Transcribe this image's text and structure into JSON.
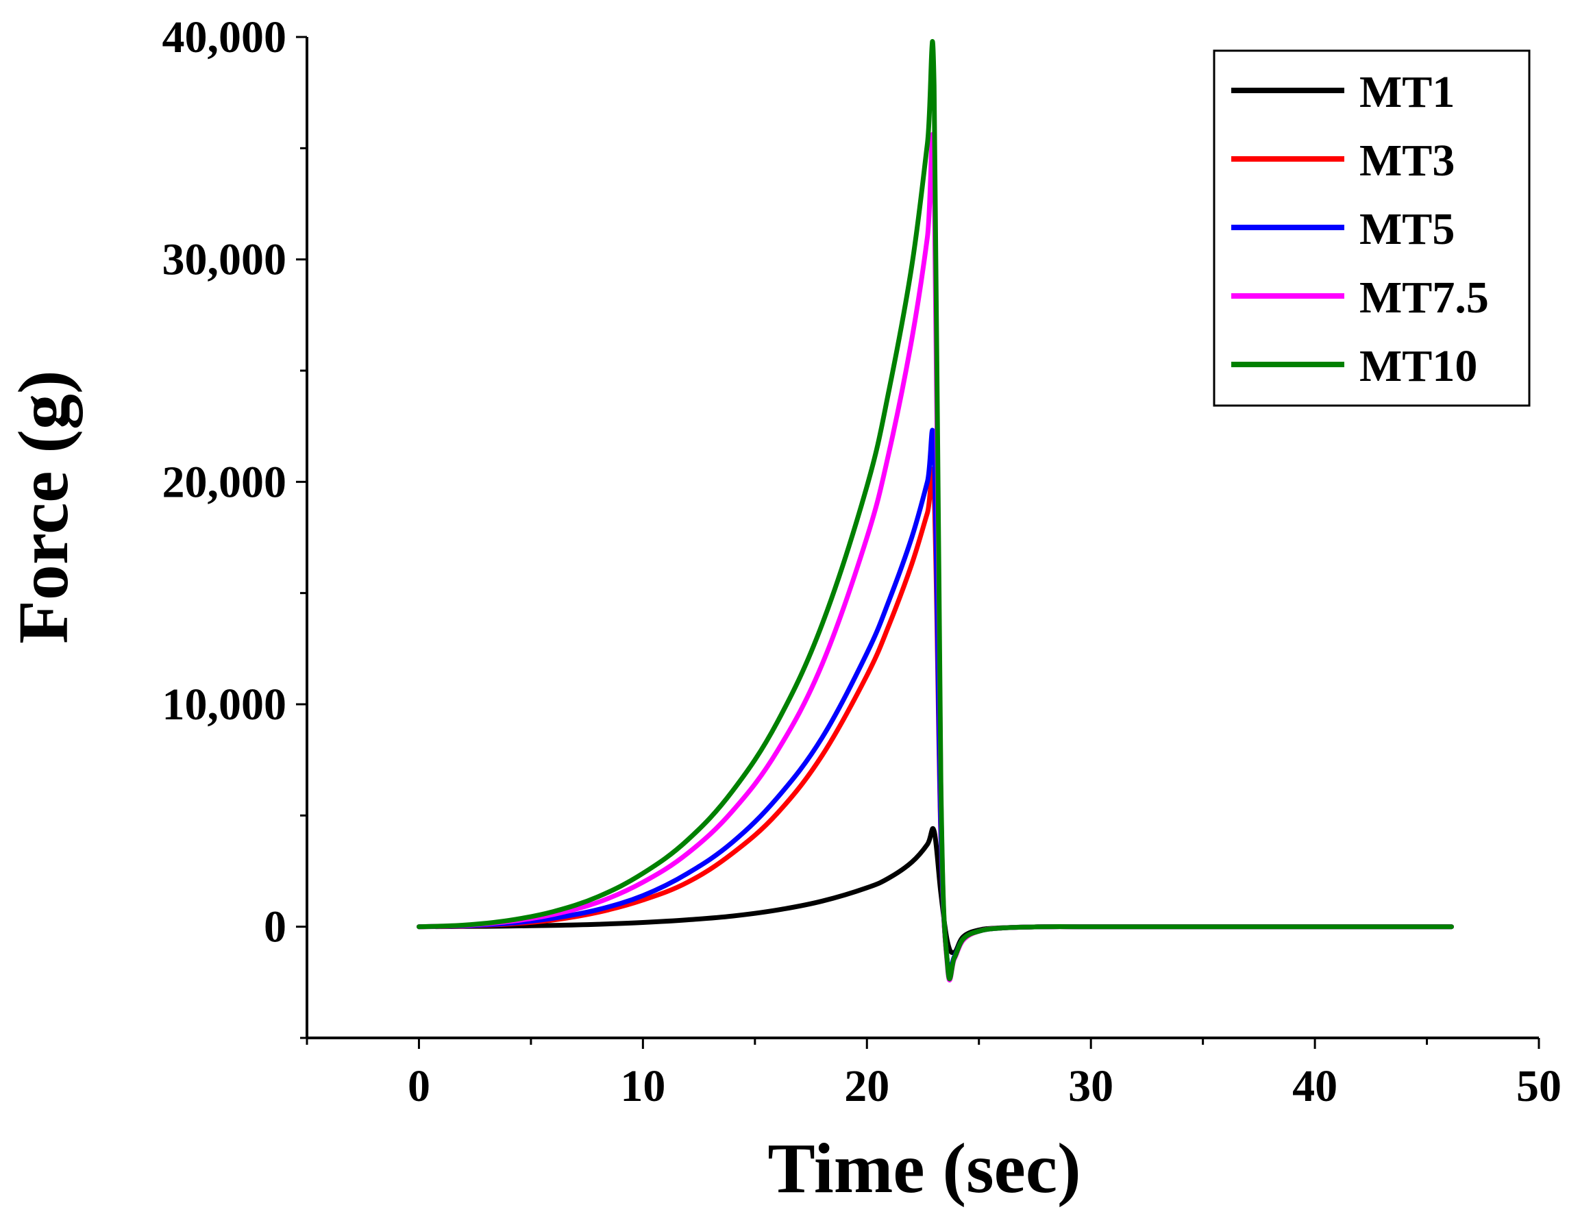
{
  "chart_data": {
    "type": "line",
    "title": "",
    "xlabel": "Time (sec)",
    "ylabel": "Force (g)",
    "xlim": [
      -5,
      50
    ],
    "ylim": [
      -5000,
      40000
    ],
    "x_ticks": [
      0,
      10,
      20,
      30,
      40,
      50
    ],
    "x_tick_labels": [
      "0",
      "10",
      "20",
      "30",
      "40",
      "50"
    ],
    "y_ticks": [
      0,
      10000,
      20000,
      30000,
      40000
    ],
    "y_tick_labels": [
      "0",
      "10,000",
      "20,000",
      "30,000",
      "40,000"
    ],
    "grid": false,
    "legend_position": "top-right",
    "series": [
      {
        "name": "MT1",
        "color": "#000000",
        "x": [
          0,
          2,
          4,
          6,
          8,
          10,
          12,
          14,
          16,
          18,
          20,
          21,
          22,
          22.7,
          23.0,
          23.3,
          23.6,
          23.9,
          24.3,
          25,
          26,
          28,
          30,
          35,
          40,
          46.1
        ],
        "y": [
          0,
          10,
          30,
          60,
          110,
          190,
          310,
          480,
          750,
          1150,
          1750,
          2200,
          2900,
          3700,
          4300,
          1500,
          -700,
          -1150,
          -450,
          -150,
          -50,
          0,
          0,
          0,
          0,
          0
        ]
      },
      {
        "name": "MT3",
        "color": "#ff0000",
        "x": [
          0,
          2,
          4,
          6,
          8,
          10,
          12,
          14,
          16,
          18,
          20,
          21,
          22,
          22.7,
          23.0,
          23.3,
          23.6,
          23.9,
          24.3,
          25,
          26,
          28,
          30,
          35,
          40,
          46.1
        ],
        "y": [
          0,
          30,
          120,
          300,
          650,
          1200,
          2000,
          3300,
          5100,
          7700,
          11300,
          13600,
          16300,
          18600,
          19500,
          4000,
          -1700,
          -1400,
          -600,
          -200,
          -60,
          0,
          0,
          0,
          0,
          0
        ]
      },
      {
        "name": "MT5",
        "color": "#0000ff",
        "x": [
          0,
          2,
          4,
          6,
          8,
          10,
          12,
          14,
          16,
          18,
          20,
          21,
          22,
          22.7,
          23.0,
          23.3,
          23.6,
          23.9,
          24.3,
          25,
          26,
          28,
          30,
          35,
          40,
          46.1
        ],
        "y": [
          0,
          40,
          150,
          380,
          770,
          1400,
          2400,
          3800,
          5800,
          8500,
          12300,
          14700,
          17500,
          20000,
          21200,
          4200,
          -1650,
          -1350,
          -550,
          -200,
          -60,
          0,
          0,
          0,
          0,
          0
        ]
      },
      {
        "name": "MT7.5",
        "color": "#ff00ff",
        "x": [
          0,
          2,
          4,
          6,
          8,
          10,
          12,
          14,
          16,
          18,
          20,
          21,
          22,
          22.7,
          23.0,
          23.3,
          23.6,
          23.9,
          24.3,
          25,
          26,
          28,
          30,
          35,
          40,
          46.1
        ],
        "y": [
          0,
          60,
          230,
          550,
          1100,
          2000,
          3300,
          5200,
          7900,
          11800,
          17500,
          21400,
          26400,
          31000,
          34000,
          6000,
          -1850,
          -1450,
          -600,
          -200,
          -60,
          0,
          0,
          0,
          0,
          0
        ]
      },
      {
        "name": "MT10",
        "color": "#008000",
        "x": [
          0,
          2,
          4,
          6,
          8,
          10,
          12,
          14,
          16,
          18,
          20,
          21,
          22,
          22.7,
          23.0,
          23.3,
          23.6,
          23.9,
          24.3,
          25,
          26,
          28,
          30,
          35,
          40,
          46.1
        ],
        "y": [
          0,
          70,
          280,
          680,
          1350,
          2400,
          3900,
          6100,
          9200,
          13600,
          19800,
          24200,
          29700,
          35200,
          37800,
          6500,
          -1750,
          -1400,
          -550,
          -200,
          -60,
          0,
          0,
          0,
          0,
          0
        ]
      }
    ]
  }
}
